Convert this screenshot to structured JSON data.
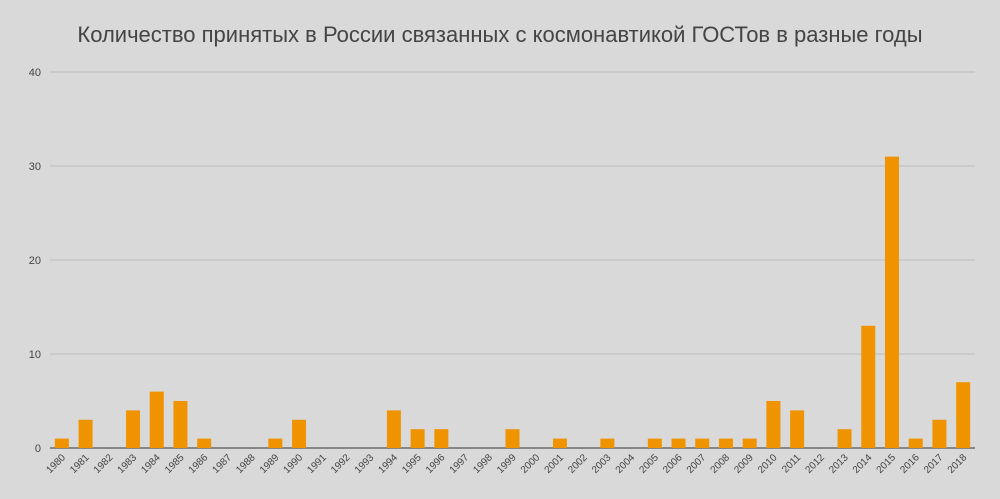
{
  "chart_data": {
    "type": "bar",
    "title": "Количество принятых в России связанных с космонавтикой ГОСТов в разные годы",
    "categories": [
      "1980",
      "1981",
      "1982",
      "1983",
      "1984",
      "1985",
      "1986",
      "1987",
      "1988",
      "1989",
      "1990",
      "1991",
      "1992",
      "1993",
      "1994",
      "1995",
      "1996",
      "1997",
      "1998",
      "1999",
      "2000",
      "2001",
      "2002",
      "2003",
      "2004",
      "2005",
      "2006",
      "2007",
      "2008",
      "2009",
      "2010",
      "2011",
      "2012",
      "2013",
      "2014",
      "2015",
      "2016",
      "2017",
      "2018"
    ],
    "values": [
      1,
      3,
      0,
      4,
      6,
      5,
      1,
      0,
      0,
      1,
      3,
      0,
      0,
      0,
      4,
      2,
      2,
      0,
      0,
      2,
      0,
      1,
      0,
      1,
      0,
      1,
      1,
      1,
      1,
      1,
      5,
      4,
      0,
      2,
      13,
      31,
      1,
      3,
      7
    ],
    "ylim": [
      0,
      40
    ],
    "yticks": [
      "0",
      "10",
      "20",
      "30",
      "40"
    ],
    "xlabel": "",
    "ylabel": "",
    "bar_color": "#f09300",
    "grid": true,
    "legend": "none"
  }
}
